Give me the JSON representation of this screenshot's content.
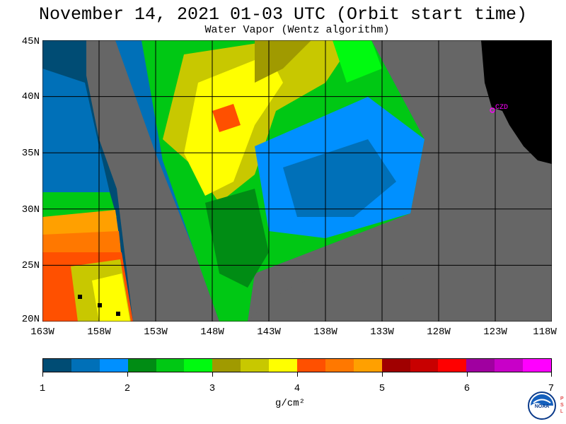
{
  "header": {
    "title": "November 14, 2021  01-03 UTC  (Orbit start time)",
    "subtitle": "Water Vapor (Wentz algorithm)"
  },
  "map": {
    "lat_labels": [
      "45N",
      "40N",
      "35N",
      "30N",
      "25N",
      "20N"
    ],
    "lon_labels": [
      "163W",
      "158W",
      "153W",
      "148W",
      "143W",
      "138W",
      "133W",
      "128W",
      "123W",
      "118W"
    ],
    "station_label": "CZD",
    "colors": {
      "no_data": "#666666",
      "land": "#000000",
      "grid": "#000000",
      "station": "#ff00ff"
    }
  },
  "colorbar": {
    "colors": [
      "#004c74",
      "#0070b8",
      "#0090ff",
      "#008c14",
      "#00c814",
      "#00fa10",
      "#a09a00",
      "#c8c800",
      "#ffff00",
      "#ff5000",
      "#ff7800",
      "#ffa000",
      "#a00000",
      "#c80000",
      "#ff0000",
      "#a000a0",
      "#c800c8",
      "#ff00ff"
    ],
    "tick_labels": [
      "1",
      "2",
      "3",
      "4",
      "5",
      "6",
      "7"
    ],
    "units": "g/cm²"
  },
  "logo": {
    "icon": "noaa-logo-icon",
    "side_text": "PSL"
  }
}
